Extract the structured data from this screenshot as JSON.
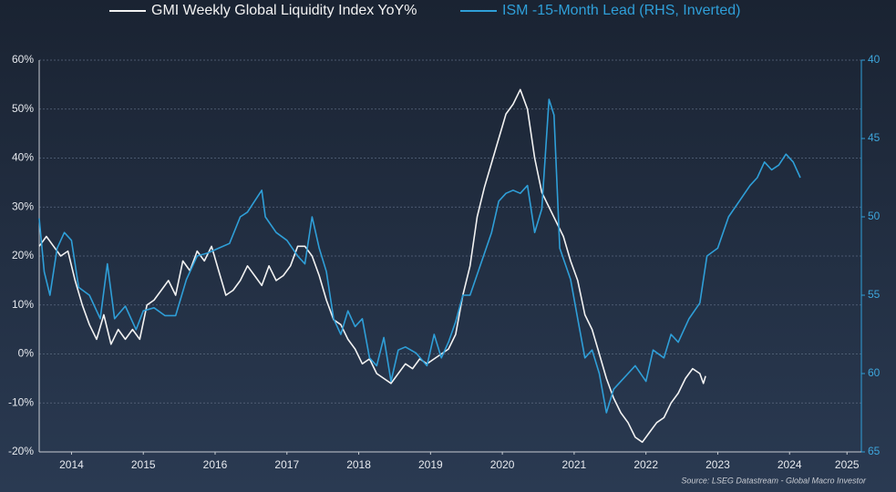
{
  "chart_data": {
    "type": "line",
    "legend_items": [
      "GMI Weekly Global Liquidity Index YoY%",
      "ISM -15-Month Lead (RHS, Inverted)"
    ],
    "source": "Source: LSEG Datastream - Global Macro Investor",
    "xlim": [
      2014.05,
      2025.5
    ],
    "xticks": [
      {
        "value": 2014.5,
        "label": "2014"
      },
      {
        "value": 2015.5,
        "label": "2015"
      },
      {
        "value": 2016.5,
        "label": "2016"
      },
      {
        "value": 2017.5,
        "label": "2017"
      },
      {
        "value": 2018.5,
        "label": "2018"
      },
      {
        "value": 2019.5,
        "label": "2019"
      },
      {
        "value": 2020.5,
        "label": "2020"
      },
      {
        "value": 2021.5,
        "label": "2021"
      },
      {
        "value": 2022.5,
        "label": "2022"
      },
      {
        "value": 2023.5,
        "label": "2023"
      },
      {
        "value": 2024.5,
        "label": "2024"
      },
      {
        "value": 2025.3,
        "label": "2025"
      }
    ],
    "ylim": [
      -20,
      60
    ],
    "yticks": [
      {
        "value": -20,
        "label": "-20%"
      },
      {
        "value": -10,
        "label": "-10%"
      },
      {
        "value": 0,
        "label": "0%"
      },
      {
        "value": 10,
        "label": "10%"
      },
      {
        "value": 20,
        "label": "20%"
      },
      {
        "value": 30,
        "label": "30%"
      },
      {
        "value": 40,
        "label": "40%"
      },
      {
        "value": 50,
        "label": "50%"
      },
      {
        "value": 60,
        "label": "60%"
      }
    ],
    "y2lim": [
      65,
      40
    ],
    "y2ticks": [
      40,
      45,
      50,
      55,
      60,
      65
    ],
    "grid": true,
    "series": [
      {
        "name": "GMI Weekly Global Liquidity Index YoY%",
        "color": "#f2f2f2",
        "x": [
          2014.05,
          2014.15,
          2014.25,
          2014.35,
          2014.45,
          2014.55,
          2014.65,
          2014.75,
          2014.85,
          2014.95,
          2015.05,
          2015.15,
          2015.25,
          2015.35,
          2015.45,
          2015.55,
          2015.65,
          2015.75,
          2015.85,
          2015.95,
          2016.05,
          2016.15,
          2016.25,
          2016.35,
          2016.45,
          2016.55,
          2016.65,
          2016.75,
          2016.85,
          2016.95,
          2017.05,
          2017.15,
          2017.25,
          2017.35,
          2017.45,
          2017.55,
          2017.65,
          2017.75,
          2017.85,
          2017.95,
          2018.05,
          2018.15,
          2018.25,
          2018.35,
          2018.45,
          2018.55,
          2018.65,
          2018.75,
          2018.85,
          2018.95,
          2019.05,
          2019.15,
          2019.25,
          2019.35,
          2019.45,
          2019.55,
          2019.65,
          2019.75,
          2019.85,
          2019.95,
          2020.05,
          2020.15,
          2020.25,
          2020.35,
          2020.45,
          2020.55,
          2020.65,
          2020.75,
          2020.85,
          2020.95,
          2021.05,
          2021.15,
          2021.25,
          2021.35,
          2021.45,
          2021.55,
          2021.65,
          2021.75,
          2021.85,
          2021.95,
          2022.05,
          2022.15,
          2022.25,
          2022.35,
          2022.45,
          2022.55,
          2022.65,
          2022.75,
          2022.85,
          2022.95,
          2023.05,
          2023.15,
          2023.25,
          2023.3,
          2023.33
        ],
        "values": [
          22,
          24,
          22,
          20,
          21,
          15,
          10,
          6,
          3,
          8,
          2,
          5,
          3,
          5,
          3,
          10,
          11,
          13,
          15,
          12,
          19,
          17,
          21,
          19,
          22,
          17,
          12,
          13,
          15,
          18,
          16,
          14,
          18,
          15,
          16,
          18,
          22,
          22,
          20,
          16,
          11,
          7,
          6,
          3,
          1,
          -2,
          -1,
          -4,
          -5,
          -6,
          -4,
          -2,
          -3,
          -1,
          -2,
          -1,
          0,
          1,
          4,
          12,
          18,
          28,
          34,
          39,
          44,
          49,
          51,
          54,
          50,
          40,
          33,
          30,
          27,
          24,
          19,
          15,
          8,
          5,
          0,
          -5,
          -9,
          -12,
          -14,
          -17,
          -18,
          -16,
          -14,
          -13,
          -10,
          -8,
          -5,
          -3,
          -4,
          -6,
          -4.5
        ]
      },
      {
        "name": "ISM -15-Month Lead (RHS, Inverted)",
        "color": "#2f9fd8",
        "axis": "y2",
        "x": [
          2014.05,
          2014.12,
          2014.2,
          2014.3,
          2014.4,
          2014.5,
          2014.6,
          2014.75,
          2014.9,
          2015.0,
          2015.1,
          2015.25,
          2015.4,
          2015.5,
          2015.65,
          2015.8,
          2015.95,
          2016.1,
          2016.25,
          2016.4,
          2016.55,
          2016.7,
          2016.85,
          2016.95,
          2017.05,
          2017.15,
          2017.2,
          2017.35,
          2017.5,
          2017.65,
          2017.75,
          2017.85,
          2017.95,
          2018.05,
          2018.15,
          2018.25,
          2018.35,
          2018.45,
          2018.55,
          2018.65,
          2018.75,
          2018.85,
          2018.95,
          2019.05,
          2019.15,
          2019.3,
          2019.45,
          2019.55,
          2019.65,
          2019.75,
          2019.85,
          2019.95,
          2020.05,
          2020.2,
          2020.35,
          2020.45,
          2020.55,
          2020.65,
          2020.75,
          2020.85,
          2020.95,
          2021.05,
          2021.15,
          2021.22,
          2021.3,
          2021.45,
          2021.55,
          2021.65,
          2021.75,
          2021.85,
          2021.95,
          2022.05,
          2022.15,
          2022.25,
          2022.35,
          2022.5,
          2022.6,
          2022.75,
          2022.85,
          2022.95,
          2023.1,
          2023.25,
          2023.35,
          2023.5,
          2023.65,
          2023.8,
          2023.95,
          2024.05,
          2024.15,
          2024.25,
          2024.35,
          2024.45,
          2024.55,
          2024.65
        ],
        "values": [
          50.1,
          53.5,
          55,
          52,
          51,
          51.5,
          54.5,
          55,
          56.5,
          53,
          56.5,
          55.7,
          57.2,
          56,
          55.8,
          56.3,
          56.3,
          54,
          52.5,
          52.3,
          52,
          51.7,
          50,
          49.7,
          49,
          48.3,
          50,
          51,
          51.5,
          52.5,
          53,
          50,
          52,
          53.5,
          56.5,
          57.5,
          56,
          57,
          56.5,
          59,
          59.5,
          57.7,
          60.5,
          58.5,
          58.3,
          58.7,
          59.5,
          57.5,
          59,
          58,
          56.7,
          55,
          55,
          53,
          51,
          49,
          48.5,
          48.3,
          48.5,
          48,
          51,
          49.5,
          42.5,
          43.5,
          52,
          54,
          56.5,
          59,
          58.5,
          60,
          62.5,
          61,
          60.5,
          60,
          59.5,
          60.5,
          58.5,
          59,
          57.5,
          58,
          56.5,
          55.5,
          52.5,
          52,
          50,
          49,
          48,
          47.5,
          46.5,
          47,
          46.7,
          46,
          46.5,
          47.5
        ]
      }
    ]
  }
}
